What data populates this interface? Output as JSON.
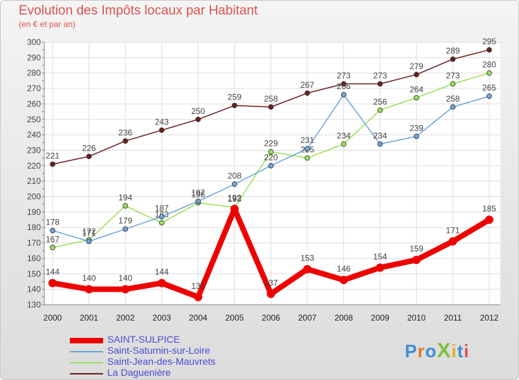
{
  "title": "Evolution des Impôts locaux par Habitant",
  "subtitle": "(en € et par an)",
  "logo": "ProXiti",
  "chart_data": {
    "type": "line",
    "x": [
      "2000",
      "2001",
      "2002",
      "2003",
      "2004",
      "2005",
      "2006",
      "2007",
      "2008",
      "2009",
      "2010",
      "2011",
      "2012"
    ],
    "ylim": [
      130,
      300
    ],
    "yticks": [
      130,
      140,
      150,
      160,
      170,
      180,
      190,
      200,
      210,
      220,
      230,
      240,
      250,
      260,
      270,
      280,
      290,
      300
    ],
    "grid": true,
    "legend_position": "bottom-left",
    "series": [
      {
        "name": "SAINT-SULPICE",
        "color": "#ee0000",
        "values": [
          144,
          140,
          140,
          144,
          135,
          192,
          137,
          153,
          146,
          154,
          159,
          171,
          185
        ]
      },
      {
        "name": "Saint-Saturnin-sur-Loire",
        "color": "#6fa3d6",
        "values": [
          178,
          171,
          179,
          187,
          197,
          208,
          220,
          231,
          266,
          234,
          239,
          258,
          265
        ]
      },
      {
        "name": "Saint-Jean-des-Mauvrets",
        "color": "#99e05a",
        "values": [
          167,
          172,
          194,
          183,
          196,
          193,
          229,
          225,
          234,
          256,
          264,
          273,
          280
        ]
      },
      {
        "name": "La Daguenière",
        "color": "#6b2020",
        "values": [
          221,
          226,
          236,
          243,
          250,
          259,
          258,
          267,
          273,
          273,
          279,
          289,
          295
        ]
      }
    ]
  }
}
